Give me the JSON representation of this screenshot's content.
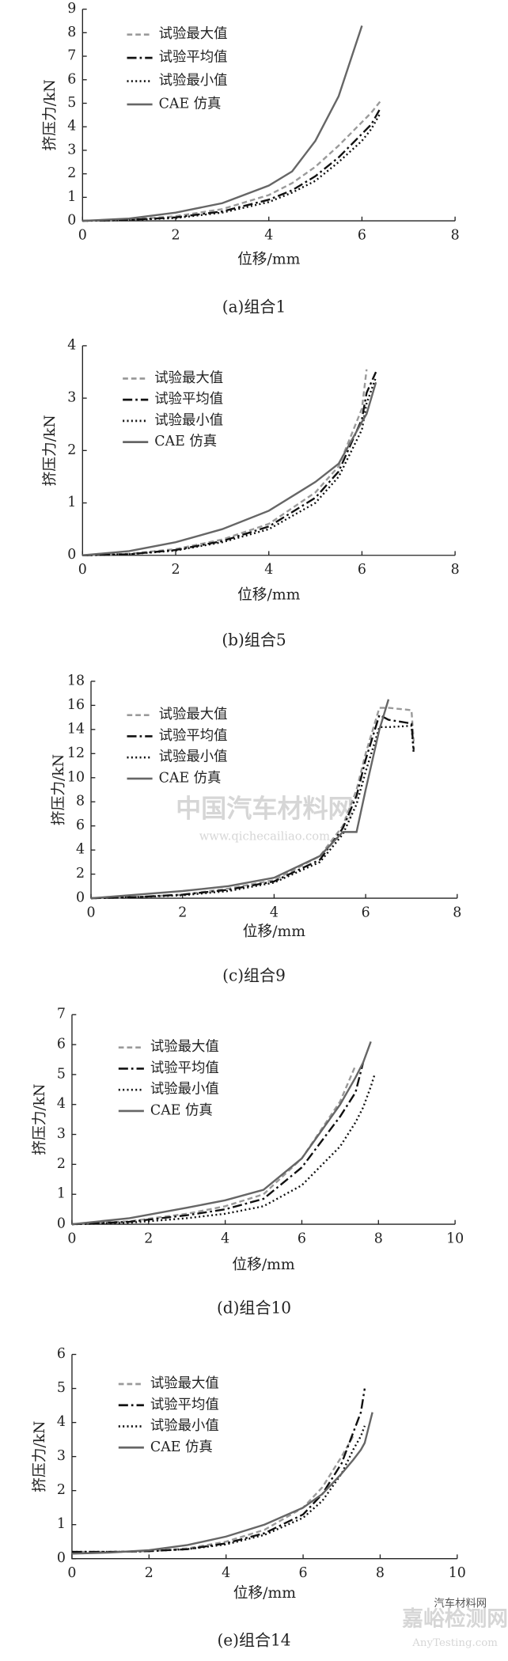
{
  "chart_data": [
    {
      "type": "line",
      "caption": "(a)组合1",
      "x_label": "位移/mm",
      "y_label": "挤压力/kN",
      "xlim": [
        0,
        8
      ],
      "ylim": [
        0,
        9
      ],
      "xticks": [
        0,
        2,
        4,
        6,
        8
      ],
      "yticks": [
        0,
        1,
        2,
        3,
        4,
        5,
        6,
        7,
        8,
        9
      ],
      "x": [
        0,
        1,
        2,
        3,
        4,
        4.5,
        5,
        5.5,
        6,
        6.2,
        6.4
      ],
      "series": [
        {
          "name": "试验最大值",
          "color": "#9a9a9a",
          "style": "dashed",
          "values": [
            0,
            0.05,
            0.2,
            0.5,
            1.1,
            1.6,
            2.3,
            3.2,
            4.2,
            4.6,
            5.1
          ]
        },
        {
          "name": "试验平均值",
          "color": "#111111",
          "style": "dashdot",
          "values": [
            0,
            0.04,
            0.15,
            0.4,
            0.9,
            1.3,
            1.9,
            2.7,
            3.7,
            4.1,
            4.8
          ]
        },
        {
          "name": "试验最小值",
          "color": "#111111",
          "style": "dotted",
          "values": [
            0,
            0.03,
            0.12,
            0.35,
            0.8,
            1.2,
            1.7,
            2.5,
            3.4,
            3.9,
            4.6
          ]
        },
        {
          "name": "CAE 仿真",
          "color": "#666666",
          "style": "solid",
          "values": [
            0,
            0.1,
            0.35,
            0.75,
            1.5,
            2.1,
            3.4,
            5.3,
            8.3,
            null,
            null
          ]
        }
      ]
    },
    {
      "type": "line",
      "caption": "(b)组合5",
      "x_label": "位移/mm",
      "y_label": "挤压力/kN",
      "xlim": [
        0,
        8
      ],
      "ylim": [
        0,
        4
      ],
      "xticks": [
        0,
        2,
        4,
        6,
        8
      ],
      "yticks": [
        0,
        1,
        2,
        3,
        4
      ],
      "x": [
        0,
        1,
        2,
        3,
        4,
        5,
        5.5,
        6,
        6.1,
        6.3
      ],
      "series": [
        {
          "name": "试验最大值",
          "color": "#9a9a9a",
          "style": "dashed",
          "values": [
            0,
            0.03,
            0.12,
            0.3,
            0.6,
            1.2,
            1.7,
            2.8,
            3.55,
            null
          ]
        },
        {
          "name": "试验平均值",
          "color": "#111111",
          "style": "dashdot",
          "values": [
            0,
            0.02,
            0.1,
            0.27,
            0.55,
            1.1,
            1.6,
            2.6,
            3.1,
            3.5
          ]
        },
        {
          "name": "试验最小值",
          "color": "#111111",
          "style": "dotted",
          "values": [
            0,
            0.02,
            0.09,
            0.25,
            0.5,
            1.0,
            1.5,
            2.4,
            2.9,
            3.4
          ]
        },
        {
          "name": "CAE 仿真",
          "color": "#666666",
          "style": "solid",
          "values": [
            0,
            0.08,
            0.25,
            0.5,
            0.85,
            1.4,
            1.75,
            2.55,
            2.7,
            3.3
          ]
        }
      ]
    },
    {
      "type": "line",
      "caption": "(c)组合9",
      "x_label": "位移/mm",
      "y_label": "挤压力/kN",
      "xlim": [
        0,
        8
      ],
      "ylim": [
        0,
        18
      ],
      "xticks": [
        0,
        2,
        4,
        6,
        8
      ],
      "yticks": [
        0,
        2,
        4,
        6,
        8,
        10,
        12,
        14,
        16,
        18
      ],
      "x": [
        0,
        1,
        2,
        3,
        4,
        5,
        5.5,
        5.8,
        6,
        6.3,
        6.5,
        7,
        7.05
      ],
      "series": [
        {
          "name": "试验最大值",
          "color": "#9a9a9a",
          "style": "dashed",
          "values": [
            0,
            0.1,
            0.3,
            0.8,
            1.5,
            3.5,
            6,
            9,
            12,
            15.8,
            15.8,
            15.6,
            13
          ]
        },
        {
          "name": "试验平均值",
          "color": "#111111",
          "style": "dashdot",
          "values": [
            0,
            0.1,
            0.3,
            0.7,
            1.4,
            3.2,
            5.8,
            8.5,
            11.5,
            15.2,
            14.8,
            14.5,
            12.3
          ]
        },
        {
          "name": "试验最小值",
          "color": "#111111",
          "style": "dotted",
          "values": [
            0,
            0.1,
            0.25,
            0.6,
            1.3,
            3,
            5.3,
            7.8,
            10.5,
            14.2,
            14.2,
            14.3,
            12
          ]
        },
        {
          "name": "CAE 仿真",
          "color": "#666666",
          "style": "solid",
          "values": [
            0,
            0.3,
            0.6,
            1.0,
            1.7,
            3.5,
            5.5,
            5.5,
            9,
            14,
            16.5,
            null,
            null
          ]
        }
      ]
    },
    {
      "type": "line",
      "caption": "(d)组合10",
      "x_label": "位移/mm",
      "y_label": "挤压力/kN",
      "xlim": [
        0,
        10
      ],
      "ylim": [
        0,
        7
      ],
      "xticks": [
        0,
        2,
        4,
        6,
        8,
        10
      ],
      "yticks": [
        0,
        1,
        2,
        3,
        4,
        5,
        6,
        7
      ],
      "x": [
        0,
        1.5,
        3,
        4,
        5,
        6,
        7,
        7.4,
        7.6,
        7.8,
        7.9
      ],
      "series": [
        {
          "name": "试验最大值",
          "color": "#9a9a9a",
          "style": "dashed",
          "values": [
            0,
            0.1,
            0.35,
            0.6,
            1.0,
            2.2,
            4.1,
            5.3,
            null,
            null,
            null
          ]
        },
        {
          "name": "试验平均值",
          "color": "#111111",
          "style": "dashdot",
          "values": [
            0,
            0.08,
            0.3,
            0.5,
            0.85,
            1.9,
            3.6,
            4.4,
            5.4,
            null,
            null
          ]
        },
        {
          "name": "试验最小值",
          "color": "#111111",
          "style": "dotted",
          "values": [
            0,
            0.05,
            0.2,
            0.35,
            0.6,
            1.3,
            2.6,
            3.4,
            3.9,
            4.6,
            5.0
          ]
        },
        {
          "name": "CAE 仿真",
          "color": "#666666",
          "style": "solid",
          "values": [
            0,
            0.2,
            0.55,
            0.8,
            1.15,
            2.2,
            4.0,
            4.9,
            5.4,
            6.1,
            null
          ]
        }
      ]
    },
    {
      "type": "line",
      "caption": "(e)组合14",
      "x_label": "位移/mm",
      "y_label": "挤压力/kN",
      "xlim": [
        0,
        10
      ],
      "ylim": [
        0,
        6
      ],
      "xticks": [
        0,
        2,
        4,
        6,
        8,
        10
      ],
      "yticks": [
        0,
        1,
        2,
        3,
        4,
        5,
        6
      ],
      "x": [
        0,
        1,
        2,
        3,
        4,
        5,
        6,
        6.5,
        7,
        7.3,
        7.5,
        7.6,
        7.8
      ],
      "series": [
        {
          "name": "试验最大值",
          "color": "#9a9a9a",
          "style": "dashed",
          "values": [
            0.2,
            0.2,
            0.22,
            0.3,
            0.5,
            0.85,
            1.5,
            2.1,
            3.0,
            3.6,
            null,
            null,
            null
          ]
        },
        {
          "name": "试验平均值",
          "color": "#111111",
          "style": "dashdot",
          "values": [
            0.2,
            0.2,
            0.22,
            0.28,
            0.45,
            0.75,
            1.3,
            1.9,
            2.8,
            3.7,
            4.3,
            5.0,
            null
          ]
        },
        {
          "name": "试验最小值",
          "color": "#111111",
          "style": "dotted",
          "values": [
            0.2,
            0.2,
            0.22,
            0.28,
            0.42,
            0.7,
            1.2,
            1.7,
            2.5,
            3.2,
            3.6,
            3.9,
            null
          ]
        },
        {
          "name": "CAE 仿真",
          "color": "#666666",
          "style": "solid",
          "values": [
            0.15,
            0.18,
            0.25,
            0.4,
            0.65,
            1.0,
            1.5,
            1.9,
            2.5,
            2.9,
            3.2,
            3.4,
            4.3
          ]
        }
      ]
    }
  ],
  "watermarks": [
    "中国汽车材料网",
    "www.qichecailiao.com",
    "汽车材料网",
    "嘉峪检测网",
    "AnyTesting.com"
  ]
}
